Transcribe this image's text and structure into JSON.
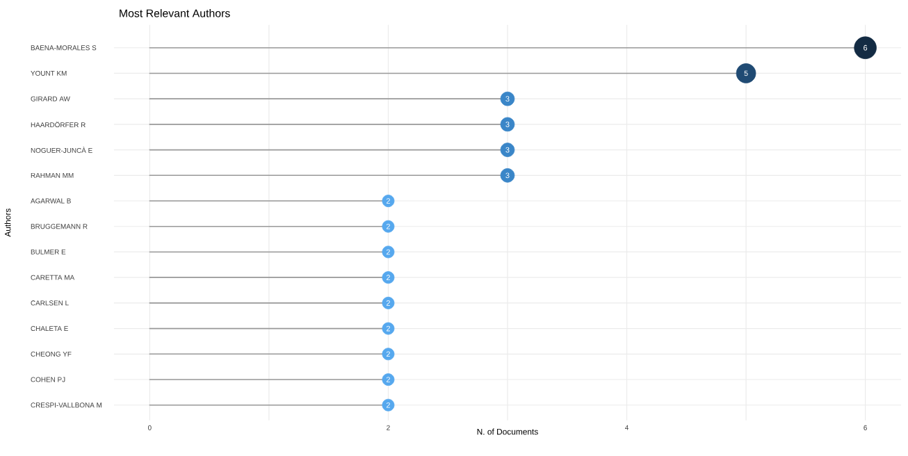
{
  "chart_data": {
    "type": "lollipop",
    "orientation": "horizontal",
    "title": "Most Relevant Authors",
    "xlabel": "N. of Documents",
    "ylabel": "Authors",
    "categories": [
      "BAENA-MORALES S",
      "YOUNT KM",
      "GIRARD AW",
      "HAARDÖRFER R",
      "NOGUER-JUNCÀ E",
      "RAHMAN MM",
      "AGARWAL B",
      "BRUGGEMANN R",
      "BULMER E",
      "CARETTA MA",
      "CARLSEN L",
      "CHALETA E",
      "CHEONG YF",
      "COHEN PJ",
      "CRESPI-VALLBONA M"
    ],
    "values": [
      6,
      5,
      3,
      3,
      3,
      3,
      2,
      2,
      2,
      2,
      2,
      2,
      2,
      2,
      2
    ],
    "colors": [
      "#132b43",
      "#1f4a73",
      "#3a86c8",
      "#3a86c8",
      "#3a86c8",
      "#3a86c8",
      "#56a8ee",
      "#56a8ee",
      "#56a8ee",
      "#56a8ee",
      "#56a8ee",
      "#56a8ee",
      "#56a8ee",
      "#56a8ee",
      "#56a8ee"
    ],
    "sizes": [
      1,
      0.77,
      0.39,
      0.39,
      0.39,
      0.39,
      0.29,
      0.29,
      0.29,
      0.29,
      0.29,
      0.29,
      0.29,
      0.29,
      0.29
    ],
    "xlim": [
      -0.3,
      6.3
    ],
    "xticks": [
      0,
      {
        "value": 1,
        "label": null
      },
      2,
      {
        "value": 3,
        "label": null
      },
      4,
      {
        "value": 5,
        "label": null
      },
      6
    ],
    "grid": true,
    "data_labels": true
  }
}
